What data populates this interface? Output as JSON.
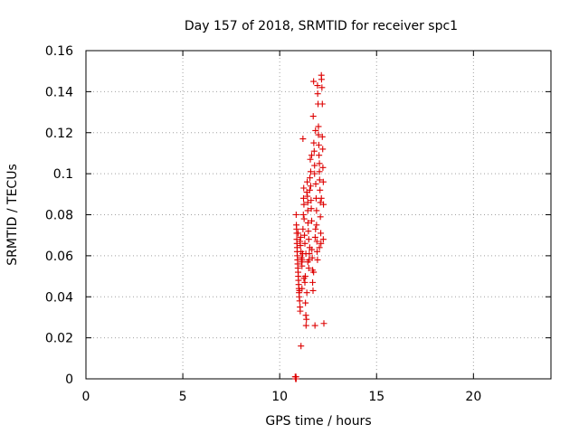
{
  "chart_data": {
    "type": "scatter",
    "title": "Day 157 of 2018, SRMTID for receiver spc1",
    "xlabel": "GPS time / hours",
    "ylabel": "SRMTID / TECUs",
    "xlim": [
      0,
      24
    ],
    "ylim": [
      0,
      0.16
    ],
    "xticks": [
      0,
      5,
      10,
      15,
      20
    ],
    "xtick_labels": [
      "0",
      "5",
      "10",
      "15",
      "20"
    ],
    "yticks": [
      0,
      0.02,
      0.04,
      0.06,
      0.08,
      0.1,
      0.12,
      0.14,
      0.16
    ],
    "ytick_labels": [
      "0",
      "0.02",
      "0.04",
      "0.06",
      "0.08",
      "0.1",
      "0.12",
      "0.14",
      "0.16"
    ],
    "grid": true,
    "marker": "plus",
    "color": "#dd0000",
    "series": [
      {
        "name": "spc1",
        "points": [
          [
            10.8,
            0.001
          ],
          [
            10.82,
            0.0
          ],
          [
            10.84,
            0.001
          ],
          [
            10.85,
            0.0
          ],
          [
            10.85,
            0.08
          ],
          [
            10.86,
            0.075
          ],
          [
            10.87,
            0.073
          ],
          [
            10.88,
            0.071
          ],
          [
            10.88,
            0.068
          ],
          [
            10.89,
            0.066
          ],
          [
            10.9,
            0.064
          ],
          [
            10.9,
            0.062
          ],
          [
            10.91,
            0.06
          ],
          [
            10.92,
            0.058
          ],
          [
            10.93,
            0.056
          ],
          [
            10.94,
            0.054
          ],
          [
            10.95,
            0.052
          ],
          [
            10.96,
            0.05
          ],
          [
            10.97,
            0.048
          ],
          [
            10.98,
            0.046
          ],
          [
            10.99,
            0.044
          ],
          [
            11.0,
            0.042
          ],
          [
            11.01,
            0.04
          ],
          [
            11.02,
            0.043
          ],
          [
            11.03,
            0.038
          ],
          [
            11.05,
            0.035
          ],
          [
            11.06,
            0.033
          ],
          [
            11.07,
            0.065
          ],
          [
            11.08,
            0.069
          ],
          [
            11.1,
            0.016
          ],
          [
            11.1,
            0.062
          ],
          [
            11.12,
            0.059
          ],
          [
            11.13,
            0.057
          ],
          [
            11.15,
            0.055
          ],
          [
            11.16,
            0.058
          ],
          [
            11.18,
            0.061
          ],
          [
            11.2,
            0.073
          ],
          [
            11.2,
            0.117
          ],
          [
            11.22,
            0.08
          ],
          [
            11.23,
            0.088
          ],
          [
            11.24,
            0.093
          ],
          [
            11.25,
            0.085
          ],
          [
            11.26,
            0.078
          ],
          [
            11.28,
            0.07
          ],
          [
            11.3,
            0.066
          ],
          [
            11.3,
            0.047
          ],
          [
            11.32,
            0.05
          ],
          [
            11.33,
            0.037
          ],
          [
            11.35,
            0.031
          ],
          [
            11.36,
            0.026
          ],
          [
            11.38,
            0.029
          ],
          [
            11.4,
            0.042
          ],
          [
            11.4,
            0.091
          ],
          [
            11.42,
            0.096
          ],
          [
            11.43,
            0.089
          ],
          [
            11.45,
            0.082
          ],
          [
            11.46,
            0.076
          ],
          [
            11.48,
            0.072
          ],
          [
            11.5,
            0.068
          ],
          [
            11.5,
            0.054
          ],
          [
            11.52,
            0.058
          ],
          [
            11.53,
            0.061
          ],
          [
            11.55,
            0.064
          ],
          [
            11.56,
            0.098
          ],
          [
            11.58,
            0.107
          ],
          [
            11.6,
            0.101
          ],
          [
            11.6,
            0.094
          ],
          [
            11.62,
            0.087
          ],
          [
            11.63,
            0.083
          ],
          [
            11.65,
            0.077
          ],
          [
            11.66,
            0.063
          ],
          [
            11.68,
            0.059
          ],
          [
            11.7,
            0.053
          ],
          [
            11.7,
            0.047
          ],
          [
            11.72,
            0.043
          ],
          [
            11.73,
            0.128
          ],
          [
            11.75,
            0.145
          ],
          [
            11.76,
            0.115
          ],
          [
            11.78,
            0.111
          ],
          [
            11.8,
            0.104
          ],
          [
            11.8,
            0.1
          ],
          [
            11.82,
            0.026
          ],
          [
            11.83,
            0.069
          ],
          [
            11.85,
            0.073
          ],
          [
            11.86,
            0.095
          ],
          [
            11.88,
            0.088
          ],
          [
            11.9,
            0.082
          ],
          [
            11.9,
            0.075
          ],
          [
            11.92,
            0.067
          ],
          [
            11.93,
            0.062
          ],
          [
            11.95,
            0.143
          ],
          [
            11.96,
            0.139
          ],
          [
            11.98,
            0.134
          ],
          [
            12.0,
            0.123
          ],
          [
            12.0,
            0.119
          ],
          [
            12.02,
            0.114
          ],
          [
            12.03,
            0.109
          ],
          [
            12.05,
            0.105
          ],
          [
            12.06,
            0.097
          ],
          [
            12.08,
            0.092
          ],
          [
            12.1,
            0.086
          ],
          [
            12.1,
            0.079
          ],
          [
            12.12,
            0.071
          ],
          [
            12.13,
            0.066
          ],
          [
            12.15,
            0.148
          ],
          [
            12.16,
            0.146
          ],
          [
            12.18,
            0.142
          ],
          [
            12.2,
            0.134
          ],
          [
            12.2,
            0.118
          ],
          [
            12.22,
            0.112
          ],
          [
            12.23,
            0.103
          ],
          [
            12.25,
            0.096
          ],
          [
            12.26,
            0.085
          ],
          [
            12.28,
            0.027
          ],
          [
            11.45,
            0.086
          ],
          [
            11.55,
            0.092
          ],
          [
            11.65,
            0.109
          ],
          [
            11.85,
            0.121
          ],
          [
            12.05,
            0.101
          ],
          [
            12.15,
            0.088
          ],
          [
            11.35,
            0.061
          ],
          [
            11.45,
            0.057
          ],
          [
            11.25,
            0.049
          ],
          [
            11.15,
            0.044
          ],
          [
            11.05,
            0.067
          ],
          [
            10.95,
            0.071
          ],
          [
            11.75,
            0.052
          ],
          [
            11.95,
            0.058
          ],
          [
            12.05,
            0.064
          ],
          [
            12.25,
            0.068
          ]
        ]
      }
    ]
  }
}
